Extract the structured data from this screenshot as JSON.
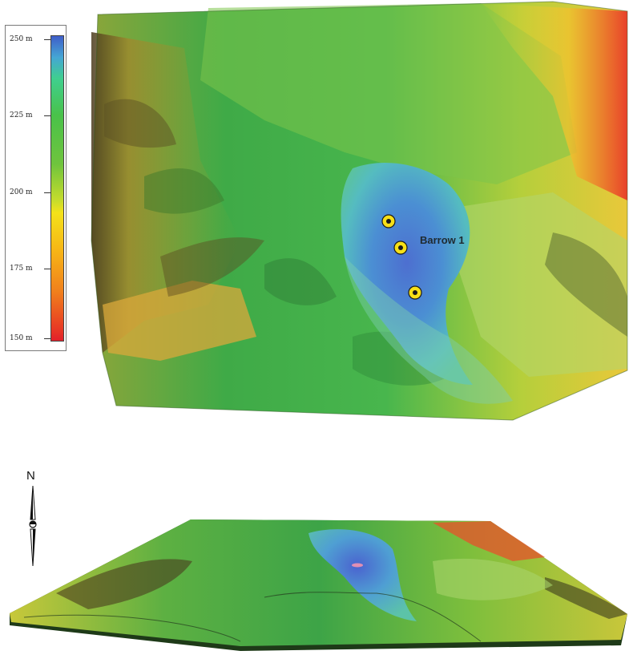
{
  "legend": {
    "unit": "m",
    "entries": [
      {
        "label": "250 m",
        "value": 250
      },
      {
        "label": "225 m",
        "value": 225
      },
      {
        "label": "200 m",
        "value": 200
      },
      {
        "label": "175 m",
        "value": 175
      },
      {
        "label": "150 m",
        "value": 150
      }
    ],
    "range": [
      150,
      250
    ],
    "ramp_colors": [
      "#e21f2a",
      "#f07f1c",
      "#f7b716",
      "#f4e21a",
      "#c6dc2c",
      "#6fc43d",
      "#49c24a",
      "#3fcf8e",
      "#45a6d4",
      "#3f5ec9"
    ]
  },
  "north_arrow": {
    "label": "N"
  },
  "site": {
    "label": "Barrow 1",
    "marker_count": 3,
    "marker_color": "#f7e017"
  },
  "views": [
    "plan-view",
    "oblique-view"
  ]
}
